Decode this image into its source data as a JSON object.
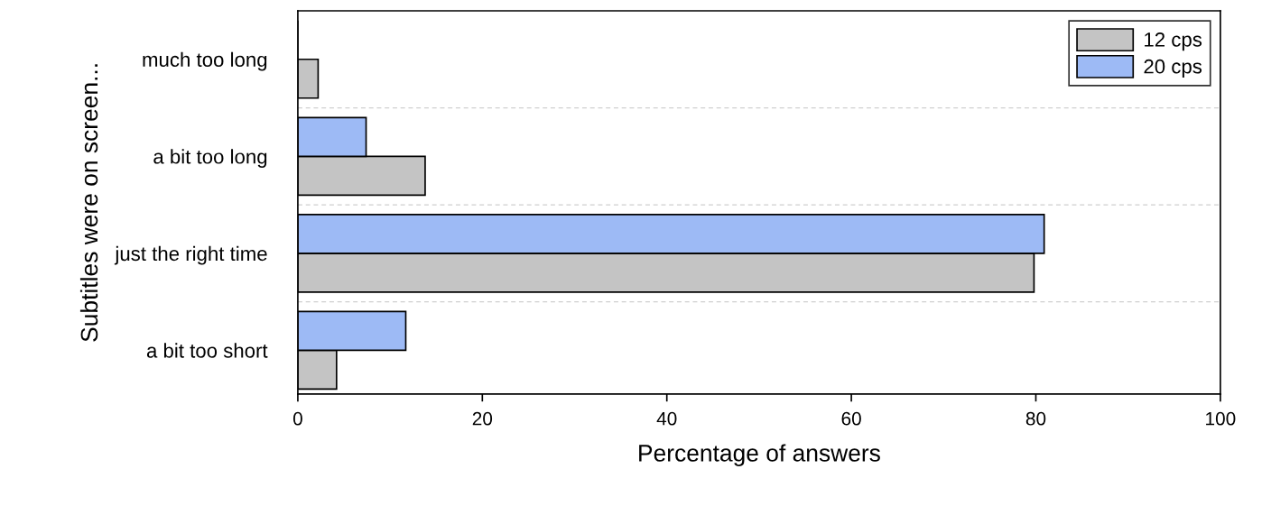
{
  "chart_data": {
    "type": "bar",
    "orientation": "horizontal",
    "ylabel": "Subtitles were on screen...",
    "xlabel": "Percentage of answers",
    "categories": [
      "much too long",
      "a bit too long",
      "just the right time",
      "a bit too short"
    ],
    "series": [
      {
        "name": "12 cps",
        "color": "#c4c4c4",
        "values": [
          2.2,
          13.8,
          79.8,
          4.2
        ]
      },
      {
        "name": "20 cps",
        "color": "#9dbaf5",
        "values": [
          0,
          7.4,
          80.9,
          11.7
        ]
      }
    ],
    "xlim": [
      0,
      100
    ],
    "xticks": [
      0,
      20,
      40,
      60,
      80,
      100
    ],
    "grid": "y",
    "legend": "top right"
  }
}
